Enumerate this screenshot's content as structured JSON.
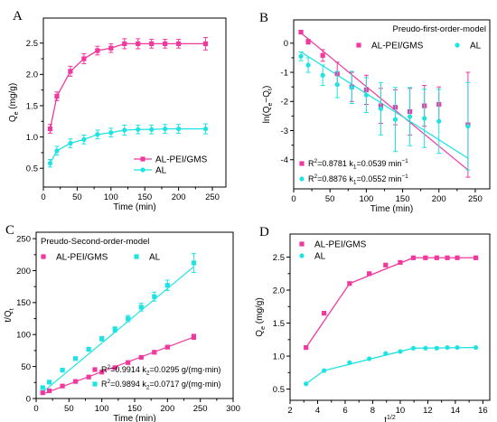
{
  "colors": {
    "pink": "#f0399e",
    "cyan": "#1fe3e3"
  },
  "chart_data": [
    {
      "id": "A",
      "panel_label": "A",
      "type": "line",
      "xlabel": "Time (min)",
      "ylabel": "Q",
      "ylabel_sub": "e",
      "ylabel_unit": " (mg/g)",
      "xlim": [
        0,
        270
      ],
      "ylim": [
        0.2,
        2.9
      ],
      "xticks": [
        0,
        50,
        100,
        150,
        200,
        250
      ],
      "yticks": [
        0.5,
        1.0,
        1.5,
        2.0,
        2.5
      ],
      "ytick_labels": [
        "0.5",
        "1.0",
        "1.5",
        "2.0",
        "2.5"
      ],
      "legend": {
        "position": "bottom-right",
        "entries": [
          "AL-PEI/GMS",
          "AL"
        ]
      },
      "series": [
        {
          "name": "AL-PEI/GMS",
          "color": "pink",
          "marker": "square",
          "mode": "line",
          "x": [
            10,
            20,
            40,
            60,
            80,
            100,
            120,
            140,
            160,
            180,
            200,
            240
          ],
          "y": [
            1.13,
            1.65,
            2.05,
            2.25,
            2.38,
            2.42,
            2.49,
            2.49,
            2.49,
            2.49,
            2.49,
            2.49
          ],
          "err": [
            0.07,
            0.07,
            0.08,
            0.08,
            0.07,
            0.07,
            0.08,
            0.08,
            0.07,
            0.07,
            0.07,
            0.1
          ]
        },
        {
          "name": "AL",
          "color": "cyan",
          "marker": "circle",
          "mode": "line",
          "x": [
            10,
            20,
            40,
            60,
            80,
            100,
            120,
            140,
            160,
            180,
            200,
            240
          ],
          "y": [
            0.58,
            0.78,
            0.9,
            0.96,
            1.04,
            1.07,
            1.11,
            1.12,
            1.12,
            1.13,
            1.13,
            1.13
          ],
          "err": [
            0.06,
            0.07,
            0.07,
            0.07,
            0.07,
            0.07,
            0.08,
            0.07,
            0.07,
            0.07,
            0.07,
            0.08
          ]
        }
      ]
    },
    {
      "id": "B",
      "panel_label": "B",
      "type": "scatter",
      "title": "Preudo-first-order-model",
      "xlabel": "Time (min)",
      "ylabel": "ln(Q",
      "ylabel_sub": "e",
      "ylabel_mid": "−Q",
      "ylabel_sub2": "t",
      "ylabel_end": ")",
      "xlim": [
        0,
        270
      ],
      "ylim": [
        -5,
        0.8
      ],
      "xticks": [
        0,
        50,
        100,
        150,
        200,
        250
      ],
      "yticks": [
        0,
        -1,
        -2,
        -3,
        -4
      ],
      "ytick_labels": [
        "0",
        "-1",
        "-2",
        "-3",
        "-4"
      ],
      "legend": {
        "position": "top-right",
        "entries": [
          "AL-PEI/GMS",
          "AL"
        ]
      },
      "annotations": [
        {
          "color": "pink",
          "marker": "square",
          "r2_label": "R",
          "r2_sup": "2",
          "text": "=0.8781 k",
          "k_sub": "1",
          "text2": "=0.0539 min",
          "unit_sup": "−1"
        },
        {
          "color": "cyan",
          "marker": "circle",
          "r2_label": "R",
          "r2_sup": "2",
          "text": "=0.8876 k",
          "k_sub": "1",
          "text2": "=0.0552 min",
          "unit_sup": "−1"
        }
      ],
      "series": [
        {
          "name": "AL-PEI/GMS",
          "color": "pink",
          "marker": "square",
          "x": [
            10,
            20,
            40,
            60,
            80,
            100,
            120,
            140,
            160,
            180,
            200,
            240
          ],
          "y": [
            0.38,
            0.05,
            -0.42,
            -1.05,
            -1.5,
            -1.6,
            -2.15,
            -2.2,
            -2.35,
            -2.15,
            -2.1,
            -2.8
          ],
          "err": [
            0.05,
            0.08,
            0.2,
            0.4,
            0.5,
            0.5,
            0.6,
            0.6,
            0.8,
            0.7,
            0.6,
            1.8
          ],
          "fit": [
            [
              10,
              0.35
            ],
            [
              240,
              -4.35
            ]
          ]
        },
        {
          "name": "AL",
          "color": "cyan",
          "marker": "circle",
          "x": [
            10,
            20,
            40,
            60,
            80,
            100,
            120,
            140,
            160,
            180,
            200,
            240
          ],
          "y": [
            -0.45,
            -0.75,
            -1.1,
            -1.42,
            -1.52,
            -1.78,
            -2.25,
            -2.62,
            -2.52,
            -2.58,
            -2.68,
            -2.85
          ],
          "err": [
            0.15,
            0.25,
            0.35,
            0.45,
            0.55,
            0.6,
            0.9,
            1.1,
            1.0,
            1.0,
            1.1,
            1.5
          ],
          "fit": [
            [
              10,
              -0.3
            ],
            [
              240,
              -3.95
            ]
          ]
        }
      ]
    },
    {
      "id": "C",
      "panel_label": "C",
      "type": "scatter",
      "title": "Preudo-Second-order-model",
      "xlabel": "Time (min)",
      "ylabel": "t/Q",
      "ylabel_sub": "t",
      "xlim": [
        0,
        300
      ],
      "ylim": [
        0,
        260
      ],
      "xticks": [
        0,
        50,
        100,
        150,
        200,
        250,
        300
      ],
      "yticks": [
        0,
        50,
        100,
        150,
        200,
        250
      ],
      "ytick_labels": [
        "0",
        "50",
        "100",
        "150",
        "200",
        "250"
      ],
      "legend": {
        "position": "top-left",
        "entries": [
          "AL-PEI/GMS",
          "AL"
        ]
      },
      "annotations": [
        {
          "color": "pink",
          "marker": "square",
          "r2_label": "R",
          "r2_sup": "2",
          "text": "=0.9914 k",
          "k_sub": "2",
          "text2": "=0.0295 g/(mg·min)"
        },
        {
          "color": "cyan",
          "marker": "square",
          "r2_label": "R",
          "r2_sup": "2",
          "text": "=0.9894 k",
          "k_sub": "2",
          "text2": "=0.0717 g/(mg·min)"
        }
      ],
      "series": [
        {
          "name": "AL-PEI/GMS",
          "color": "pink",
          "marker": "square",
          "x": [
            10,
            20,
            40,
            60,
            80,
            100,
            120,
            140,
            160,
            180,
            200,
            240
          ],
          "y": [
            9,
            12,
            19.5,
            26.7,
            33.6,
            41.3,
            48.2,
            56.2,
            64.3,
            72.3,
            80.3,
            96.4
          ],
          "err": [
            0.5,
            0.5,
            0.7,
            0.8,
            1,
            1,
            1.2,
            1.5,
            1.5,
            1.8,
            2,
            4
          ],
          "fit": [
            [
              10,
              7
            ],
            [
              240,
              96
            ]
          ]
        },
        {
          "name": "AL",
          "color": "cyan",
          "marker": "square",
          "x": [
            10,
            20,
            40,
            60,
            80,
            100,
            120,
            140,
            160,
            180,
            200,
            240
          ],
          "y": [
            17,
            25.6,
            44.4,
            62.5,
            77,
            93.5,
            108,
            125,
            142.9,
            159.3,
            177,
            212
          ],
          "err": [
            1,
            1.5,
            2,
            2.5,
            3,
            3.5,
            4,
            5,
            6,
            7,
            8,
            15
          ],
          "fit": [
            [
              10,
              10
            ],
            [
              240,
              206
            ]
          ]
        }
      ]
    },
    {
      "id": "D",
      "panel_label": "D",
      "type": "line",
      "xlabel": "t",
      "xlabel_sup": "1/2",
      "ylabel": "Q",
      "ylabel_sub": "e",
      "ylabel_unit": " (mg/g)",
      "xlim": [
        2,
        16.5
      ],
      "ylim": [
        0.33,
        2.85
      ],
      "xticks": [
        2,
        4,
        6,
        8,
        10,
        12,
        14,
        16
      ],
      "yticks": [
        0.5,
        1.0,
        1.5,
        2.0,
        2.5
      ],
      "ytick_labels": [
        "0.5",
        "1.0",
        "1.5",
        "2.0",
        "2.5"
      ],
      "legend": {
        "position": "top-left",
        "entries": [
          "AL-PEI/GMS",
          "AL"
        ]
      },
      "series": [
        {
          "name": "AL-PEI/GMS",
          "color": "pink",
          "marker": "square",
          "mode": "markers",
          "x": [
            3.16,
            4.47,
            6.32,
            7.75,
            8.94,
            10.0,
            10.95,
            11.83,
            12.65,
            13.42,
            14.14,
            15.49
          ],
          "y": [
            1.13,
            1.65,
            2.1,
            2.25,
            2.38,
            2.42,
            2.49,
            2.49,
            2.49,
            2.49,
            2.49,
            2.49
          ],
          "fit_lines": [
            [
              [
                3.16,
                1.13
              ],
              [
                6.32,
                2.1
              ]
            ],
            [
              [
                6.32,
                2.1
              ],
              [
                10.95,
                2.49
              ]
            ],
            [
              [
                10.95,
                2.49
              ],
              [
                15.49,
                2.49
              ]
            ]
          ]
        },
        {
          "name": "AL",
          "color": "cyan",
          "marker": "circle",
          "mode": "markers",
          "x": [
            3.16,
            4.47,
            6.32,
            7.75,
            8.94,
            10.0,
            10.95,
            11.83,
            12.65,
            13.42,
            14.14,
            15.49
          ],
          "y": [
            0.58,
            0.78,
            0.9,
            0.96,
            1.04,
            1.07,
            1.12,
            1.12,
            1.12,
            1.13,
            1.13,
            1.13
          ],
          "fit_lines": [
            [
              [
                3.16,
                0.58
              ],
              [
                4.47,
                0.78
              ]
            ],
            [
              [
                4.47,
                0.78
              ],
              [
                10.95,
                1.12
              ]
            ],
            [
              [
                10.95,
                1.12
              ],
              [
                15.49,
                1.13
              ]
            ]
          ]
        }
      ]
    }
  ]
}
